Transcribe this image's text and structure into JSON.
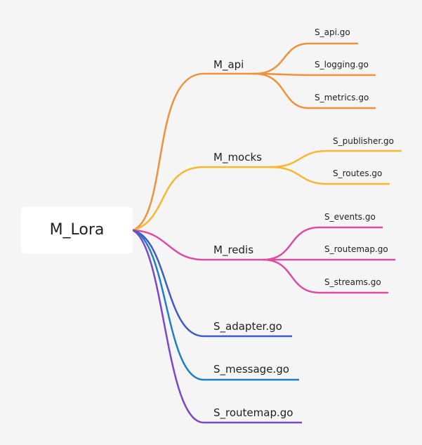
{
  "root": {
    "label": "M_Lora"
  },
  "branches": [
    {
      "label": "M_api",
      "color": "#f0913a",
      "children": [
        {
          "label": "S_api.go"
        },
        {
          "label": "S_logging.go"
        },
        {
          "label": "S_metrics.go"
        }
      ]
    },
    {
      "label": "M_mocks",
      "color": "#f7b731",
      "children": [
        {
          "label": "S_publisher.go"
        },
        {
          "label": "S_routes.go"
        }
      ]
    },
    {
      "label": "M_redis",
      "color": "#df4aa3",
      "children": [
        {
          "label": "S_events.go"
        },
        {
          "label": "S_routemap.go"
        },
        {
          "label": "S_streams.go"
        }
      ]
    },
    {
      "label": "S_adapter.go",
      "color": "#3d5bc2",
      "children": []
    },
    {
      "label": "S_message.go",
      "color": "#1b7fc6",
      "children": []
    },
    {
      "label": "S_routemap.go",
      "color": "#7a47c9",
      "children": []
    }
  ]
}
